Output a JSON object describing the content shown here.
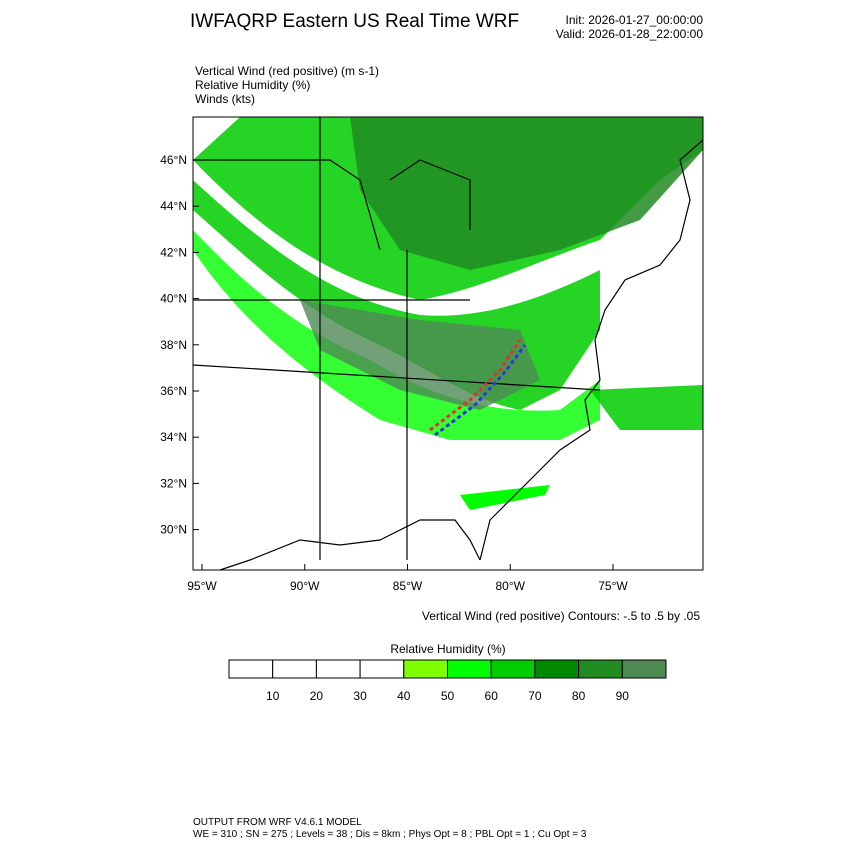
{
  "header": {
    "title": "IWFAQRP Eastern US Real Time WRF",
    "init": "Init: 2026-01-27_00:00:00",
    "valid": "Valid: 2026-01-28_22:00:00"
  },
  "fields": [
    "Vertical Wind (red positive)   (m s-1)",
    "Relative Humidity   (%)",
    "Winds   (kts)"
  ],
  "map": {
    "lat_ticks": [
      {
        "value": 46,
        "label": "46°N"
      },
      {
        "value": 44,
        "label": "44°N"
      },
      {
        "value": 42,
        "label": "42°N"
      },
      {
        "value": 40,
        "label": "40°N"
      },
      {
        "value": 38,
        "label": "38°N"
      },
      {
        "value": 36,
        "label": "36°N"
      },
      {
        "value": 34,
        "label": "34°N"
      },
      {
        "value": 32,
        "label": "32°N"
      },
      {
        "value": 30,
        "label": "30°N"
      }
    ],
    "lon_ticks": [
      {
        "value": -95,
        "label": "95°W"
      },
      {
        "value": -90,
        "label": "90°W"
      },
      {
        "value": -85,
        "label": "85°W"
      },
      {
        "value": -80,
        "label": "80°W"
      },
      {
        "value": -75,
        "label": "75°W"
      }
    ],
    "contour_note": "Vertical Wind (red positive) Contours: -.5 to .5 by .05"
  },
  "colorbar": {
    "title": "Relative Humidity  (%)",
    "labels": [
      10,
      20,
      30,
      40,
      50,
      60,
      70,
      80,
      90
    ],
    "colors": [
      "#ffffff",
      "#ffffff",
      "#ffffff",
      "#ffffff",
      "#80ff00",
      "#00ff00",
      "#00cc00",
      "#008800",
      "#228b22",
      "#4f8a55"
    ]
  },
  "footer": {
    "line1": "OUTPUT FROM WRF V4.6.1 MODEL",
    "line2": "WE = 310 ; SN = 275 ; Levels = 38 ; Dis = 8km ; Phys Opt = 8 ; PBL Opt = 1 ; Cu Opt = 3"
  }
}
